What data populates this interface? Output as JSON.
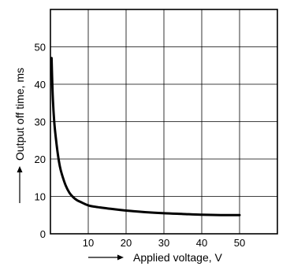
{
  "chart_data": {
    "type": "line",
    "xlabel": "Applied voltage, V",
    "ylabel": "Output off time, ms",
    "xlim": [
      0,
      60
    ],
    "ylim": [
      0,
      60
    ],
    "x_ticks": [
      10,
      20,
      30,
      40,
      50
    ],
    "y_ticks": [
      0,
      10,
      20,
      30,
      40,
      50
    ],
    "grid": true,
    "series": [
      {
        "x": [
          0.3,
          0.6,
          1,
          1.5,
          2,
          2.5,
          3,
          4,
          5,
          6,
          7,
          8,
          10,
          12,
          15,
          20,
          25,
          30,
          35,
          40,
          45,
          50
        ],
        "y": [
          47,
          37,
          30,
          25,
          21,
          18,
          16,
          13,
          11,
          9.8,
          9,
          8.5,
          7.6,
          7.2,
          6.8,
          6.2,
          5.8,
          5.5,
          5.3,
          5.1,
          5.0,
          5.0
        ]
      }
    ],
    "colors": {
      "line": "#000000",
      "grid": "#000000",
      "background": "#ffffff"
    }
  }
}
